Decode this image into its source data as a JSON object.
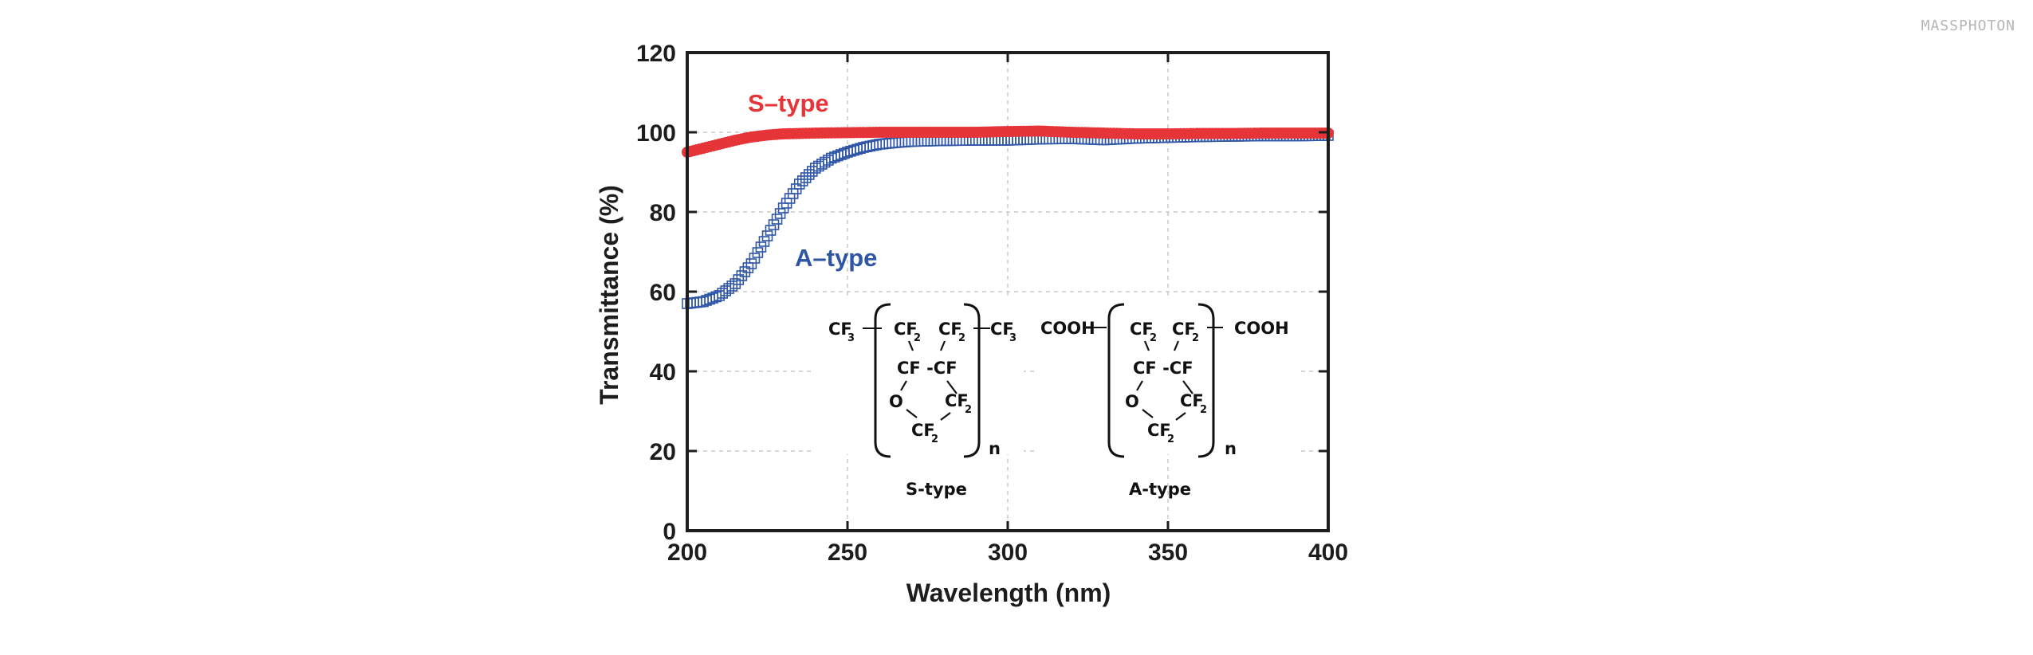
{
  "watermark": "MASSPHOTON",
  "chart_data": {
    "type": "scatter",
    "xlabel": "Wavelength (nm)",
    "ylabel": "Transmittance (%)",
    "xlim": [
      200,
      400
    ],
    "ylim": [
      0,
      120
    ],
    "xticks": [
      200,
      250,
      300,
      350,
      400
    ],
    "yticks": [
      0,
      20,
      40,
      60,
      80,
      100,
      120
    ],
    "grid": true,
    "colors": {
      "s_type": "#e63538",
      "a_type": "#2f55a6",
      "grid": "#c8c8c8",
      "axis": "#1d1d1d"
    },
    "series": [
      {
        "name": "S–type",
        "marker": "filled-circle",
        "x": [
          200,
          205,
          210,
          215,
          220,
          225,
          230,
          240,
          250,
          260,
          270,
          280,
          290,
          300,
          310,
          320,
          330,
          340,
          350,
          360,
          370,
          380,
          390,
          400
        ],
        "y": [
          95,
          96,
          97,
          98,
          98.8,
          99.3,
          99.6,
          99.8,
          99.9,
          100,
          100,
          100,
          100,
          100.2,
          100.3,
          100,
          99.8,
          99.6,
          99.6,
          99.7,
          99.7,
          99.8,
          99.8,
          99.8
        ]
      },
      {
        "name": "A–type",
        "marker": "open-square",
        "x": [
          200,
          205,
          210,
          215,
          220,
          225,
          230,
          235,
          240,
          245,
          250,
          255,
          260,
          265,
          270,
          280,
          290,
          300,
          310,
          320,
          330,
          340,
          350,
          360,
          370,
          380,
          390,
          400
        ],
        "y": [
          57,
          57.5,
          59,
          62,
          67,
          74,
          81,
          87,
          91,
          93.5,
          95,
          96.2,
          97,
          97.4,
          97.7,
          97.9,
          98,
          98,
          98.3,
          98.4,
          98.1,
          98.5,
          98.7,
          98.9,
          99,
          99.1,
          99.1,
          99.2
        ]
      }
    ],
    "annotations": {
      "structures": [
        {
          "name": "S-type",
          "end_group_left": "CF",
          "end_group_left_sub": "3",
          "end_group_right": "CF",
          "end_group_right_sub": "3",
          "ring_top_left": "CF",
          "ring_top_left_sub": "2",
          "ring_top_right": "CF",
          "ring_top_right_sub": "2",
          "ring_mid": "CF -CF",
          "ring_O": "O",
          "ring_right": "CF",
          "ring_right_sub": "2",
          "ring_bottom": "CF",
          "ring_bottom_sub": "2",
          "repeat": "n"
        },
        {
          "name": "A-type",
          "end_group_left": "COOH",
          "end_group_right": "COOH",
          "ring_top_left": "CF",
          "ring_top_left_sub": "2",
          "ring_top_right": "CF",
          "ring_top_right_sub": "2",
          "ring_mid": "CF -CF",
          "ring_O": "O",
          "ring_right": "CF",
          "ring_right_sub": "2",
          "ring_bottom": "CF",
          "ring_bottom_sub": "2",
          "repeat": "n"
        }
      ]
    }
  }
}
